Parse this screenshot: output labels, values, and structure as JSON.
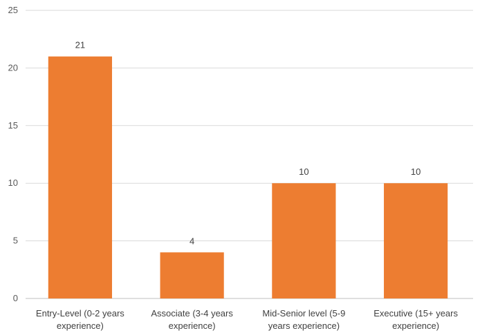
{
  "chart_data": {
    "type": "bar",
    "categories": [
      [
        "Entry-Level (0-2 years",
        "experience)"
      ],
      [
        "Associate (3-4 years",
        "experience)"
      ],
      [
        "Mid-Senior level (5-9",
        "years experience)"
      ],
      [
        "Executive (15+ years",
        "experience)"
      ]
    ],
    "values": [
      21,
      4,
      10,
      10
    ],
    "ylim": [
      0,
      25
    ],
    "yticks": [
      0,
      5,
      10,
      15,
      20,
      25
    ],
    "title": "",
    "xlabel": "",
    "ylabel": "",
    "grid": true,
    "legend": "none",
    "bar_color": "#ED7D31",
    "data_labels": true
  }
}
